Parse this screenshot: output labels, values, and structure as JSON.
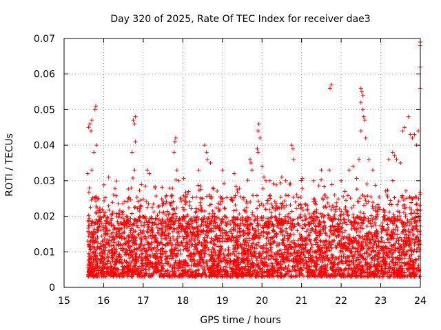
{
  "chart_data": {
    "type": "scatter",
    "title": "Day 320 of 2025, Rate Of TEC Index for receiver dae3",
    "xlabel": "GPS time / hours",
    "ylabel": "ROTI / TECUs",
    "xlim": [
      15,
      24
    ],
    "ylim": [
      0,
      0.07
    ],
    "xticks": [
      15,
      16,
      17,
      18,
      19,
      20,
      21,
      22,
      23,
      24
    ],
    "xtick_labels": [
      "15",
      "16",
      "17",
      "18",
      "19",
      "20",
      "21",
      "22",
      "23",
      "24"
    ],
    "yticks": [
      0,
      0.01,
      0.02,
      0.03,
      0.04,
      0.05,
      0.06,
      0.07
    ],
    "ytick_labels": [
      "0",
      "0.01",
      "0.02",
      "0.03",
      "0.04",
      "0.05",
      "0.06",
      "0.07"
    ],
    "grid": true,
    "marker": "+",
    "color": "#ff0000",
    "series": [
      {
        "name": "ROTI",
        "x_range": [
          15.6,
          24.0
        ],
        "typical_y_range": [
          0.003,
          0.02
        ],
        "points": [
          [
            15.62,
            0.045
          ],
          [
            15.65,
            0.046
          ],
          [
            15.68,
            0.044
          ],
          [
            15.7,
            0.047
          ],
          [
            15.78,
            0.05
          ],
          [
            15.8,
            0.051
          ],
          [
            15.75,
            0.038
          ],
          [
            15.82,
            0.04
          ],
          [
            15.6,
            0.032
          ],
          [
            15.64,
            0.028
          ],
          [
            15.7,
            0.033
          ],
          [
            15.85,
            0.025
          ],
          [
            16.75,
            0.047
          ],
          [
            16.8,
            0.048
          ],
          [
            16.78,
            0.046
          ],
          [
            16.8,
            0.041
          ],
          [
            16.72,
            0.038
          ],
          [
            16.78,
            0.033
          ],
          [
            16.7,
            0.028
          ],
          [
            17.1,
            0.033
          ],
          [
            17.15,
            0.032
          ],
          [
            17.3,
            0.028
          ],
          [
            17.8,
            0.041
          ],
          [
            17.82,
            0.042
          ],
          [
            17.78,
            0.038
          ],
          [
            17.85,
            0.033
          ],
          [
            17.9,
            0.03
          ],
          [
            18.6,
            0.038
          ],
          [
            18.62,
            0.036
          ],
          [
            18.55,
            0.04
          ],
          [
            18.7,
            0.035
          ],
          [
            18.4,
            0.033
          ],
          [
            19.0,
            0.033
          ],
          [
            19.3,
            0.032
          ],
          [
            19.7,
            0.036
          ],
          [
            19.72,
            0.035
          ],
          [
            19.75,
            0.033
          ],
          [
            19.9,
            0.044
          ],
          [
            19.92,
            0.046
          ],
          [
            19.95,
            0.042
          ],
          [
            19.88,
            0.039
          ],
          [
            19.9,
            0.038
          ],
          [
            20.0,
            0.034
          ],
          [
            20.05,
            0.031
          ],
          [
            20.1,
            0.03
          ],
          [
            20.2,
            0.03
          ],
          [
            20.5,
            0.031
          ],
          [
            20.6,
            0.03
          ],
          [
            20.7,
            0.029
          ],
          [
            20.75,
            0.04
          ],
          [
            20.78,
            0.039
          ],
          [
            20.8,
            0.036
          ],
          [
            21.3,
            0.03
          ],
          [
            21.5,
            0.033
          ],
          [
            21.72,
            0.056
          ],
          [
            21.75,
            0.057
          ],
          [
            21.7,
            0.033
          ],
          [
            22.0,
            0.03
          ],
          [
            22.2,
            0.033
          ],
          [
            22.3,
            0.034
          ],
          [
            22.5,
            0.056
          ],
          [
            22.52,
            0.055
          ],
          [
            22.55,
            0.054
          ],
          [
            22.5,
            0.052
          ],
          [
            22.55,
            0.05
          ],
          [
            22.57,
            0.048
          ],
          [
            22.6,
            0.047
          ],
          [
            22.5,
            0.044
          ],
          [
            22.45,
            0.036
          ],
          [
            22.62,
            0.042
          ],
          [
            22.7,
            0.036
          ],
          [
            22.8,
            0.033
          ],
          [
            23.2,
            0.036
          ],
          [
            23.3,
            0.038
          ],
          [
            23.35,
            0.037
          ],
          [
            23.4,
            0.036
          ],
          [
            23.5,
            0.035
          ],
          [
            23.55,
            0.044
          ],
          [
            23.6,
            0.045
          ],
          [
            23.7,
            0.048
          ],
          [
            23.75,
            0.043
          ],
          [
            23.8,
            0.042
          ],
          [
            23.85,
            0.043
          ],
          [
            23.9,
            0.04
          ],
          [
            23.95,
            0.044
          ],
          [
            24.0,
            0.069
          ],
          [
            24.0,
            0.068
          ],
          [
            24.0,
            0.062
          ],
          [
            24.0,
            0.056
          ]
        ]
      }
    ]
  }
}
